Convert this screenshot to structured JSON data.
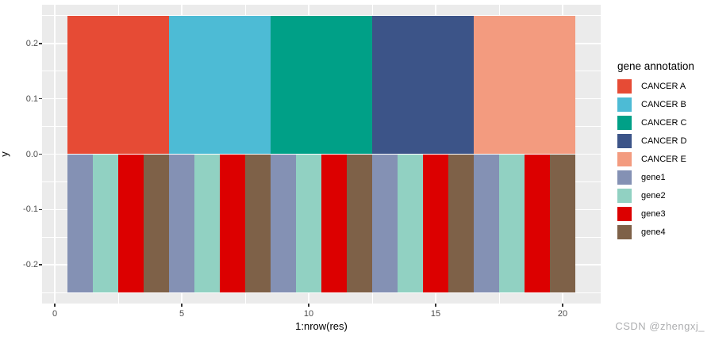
{
  "chart_data": {
    "type": "bar",
    "title": "",
    "xlabel": "1:nrow(res)",
    "ylabel": "y",
    "xlim": [
      -0.5,
      21.5
    ],
    "ylim": [
      -0.27,
      0.27
    ],
    "x_major_ticks": [
      {
        "v": 0,
        "label": "0"
      },
      {
        "v": 5,
        "label": "5"
      },
      {
        "v": 10,
        "label": "10"
      },
      {
        "v": 15,
        "label": "15"
      },
      {
        "v": 20,
        "label": "20"
      }
    ],
    "x_minor_ticks": [
      2.5,
      7.5,
      12.5,
      17.5
    ],
    "y_major_ticks": [
      {
        "v": 0.2,
        "label": "0.2"
      },
      {
        "v": 0.1,
        "label": "0.1"
      },
      {
        "v": 0.0,
        "label": "0.0"
      },
      {
        "v": -0.1,
        "label": "-0.1"
      },
      {
        "v": -0.2,
        "label": "-0.2"
      }
    ],
    "y_minor_ticks": [
      0.25,
      0.15,
      0.05,
      -0.05,
      -0.15,
      -0.25
    ],
    "grid": true,
    "panel_bg_color": "#EBEBEB",
    "grid_color": "#FFFFFF",
    "tick_mark_color": "#333333",
    "tick_label_color": "#4D4D4D",
    "palette": {
      "CANCER A": "#E64B35",
      "CANCER B": "#4DBBD5",
      "CANCER C": "#00A087",
      "CANCER D": "#3C5488",
      "CANCER E": "#F39B7F",
      "gene1": "#8491B4",
      "gene2": "#91D1C2",
      "gene3": "#DC0000",
      "gene4": "#7E6148"
    },
    "annotation_blocks": [
      {
        "label": "CANCER A",
        "x0": 0.5,
        "x1": 4.5,
        "y0": 0,
        "y1": 0.25
      },
      {
        "label": "CANCER B",
        "x0": 4.5,
        "x1": 8.5,
        "y0": 0,
        "y1": 0.25
      },
      {
        "label": "CANCER C",
        "x0": 8.5,
        "x1": 12.5,
        "y0": 0,
        "y1": 0.25
      },
      {
        "label": "CANCER D",
        "x0": 12.5,
        "x1": 16.5,
        "y0": 0,
        "y1": 0.25
      },
      {
        "label": "CANCER E",
        "x0": 16.5,
        "x1": 20.5,
        "y0": 0,
        "y1": 0.25
      }
    ],
    "gene_bars": [
      {
        "x": 1,
        "gene": "gene1",
        "y0": -0.25,
        "y1": 0
      },
      {
        "x": 2,
        "gene": "gene2",
        "y0": -0.25,
        "y1": 0
      },
      {
        "x": 3,
        "gene": "gene3",
        "y0": -0.25,
        "y1": 0
      },
      {
        "x": 4,
        "gene": "gene4",
        "y0": -0.25,
        "y1": 0
      },
      {
        "x": 5,
        "gene": "gene1",
        "y0": -0.25,
        "y1": 0
      },
      {
        "x": 6,
        "gene": "gene2",
        "y0": -0.25,
        "y1": 0
      },
      {
        "x": 7,
        "gene": "gene3",
        "y0": -0.25,
        "y1": 0
      },
      {
        "x": 8,
        "gene": "gene4",
        "y0": -0.25,
        "y1": 0
      },
      {
        "x": 9,
        "gene": "gene1",
        "y0": -0.25,
        "y1": 0
      },
      {
        "x": 10,
        "gene": "gene2",
        "y0": -0.25,
        "y1": 0
      },
      {
        "x": 11,
        "gene": "gene3",
        "y0": -0.25,
        "y1": 0
      },
      {
        "x": 12,
        "gene": "gene4",
        "y0": -0.25,
        "y1": 0
      },
      {
        "x": 13,
        "gene": "gene1",
        "y0": -0.25,
        "y1": 0
      },
      {
        "x": 14,
        "gene": "gene2",
        "y0": -0.25,
        "y1": 0
      },
      {
        "x": 15,
        "gene": "gene3",
        "y0": -0.25,
        "y1": 0
      },
      {
        "x": 16,
        "gene": "gene4",
        "y0": -0.25,
        "y1": 0
      },
      {
        "x": 17,
        "gene": "gene1",
        "y0": -0.25,
        "y1": 0
      },
      {
        "x": 18,
        "gene": "gene2",
        "y0": -0.25,
        "y1": 0
      },
      {
        "x": 19,
        "gene": "gene3",
        "y0": -0.25,
        "y1": 0
      },
      {
        "x": 20,
        "gene": "gene4",
        "y0": -0.25,
        "y1": 0
      }
    ],
    "legend": {
      "title": "gene annotation",
      "position": "right",
      "entries": [
        {
          "label": "CANCER A",
          "color": "#E64B35"
        },
        {
          "label": "CANCER B",
          "color": "#4DBBD5"
        },
        {
          "label": "CANCER C",
          "color": "#00A087"
        },
        {
          "label": "CANCER D",
          "color": "#3C5488"
        },
        {
          "label": "CANCER E",
          "color": "#F39B7F"
        },
        {
          "label": "gene1",
          "color": "#8491B4"
        },
        {
          "label": "gene2",
          "color": "#91D1C2"
        },
        {
          "label": "gene3",
          "color": "#DC0000"
        },
        {
          "label": "gene4",
          "color": "#7E6148"
        }
      ]
    }
  },
  "watermark": {
    "text": "CSDN @zhengxj_",
    "color": "#ADAEB0"
  }
}
